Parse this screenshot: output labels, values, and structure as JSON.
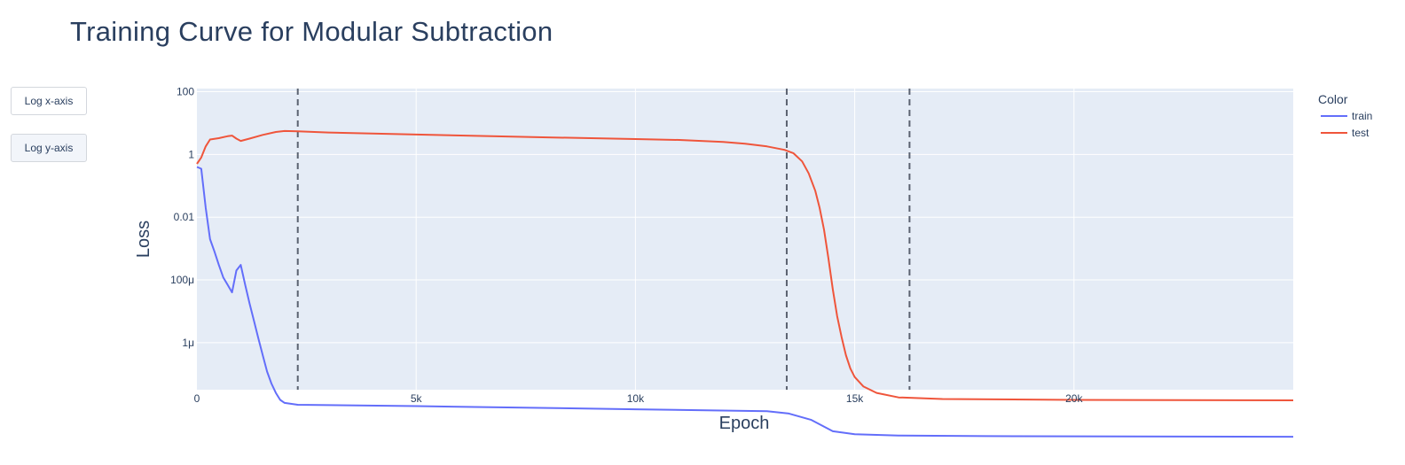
{
  "chart_data": {
    "type": "line",
    "title": "Training Curve for Modular Subtraction",
    "xlabel": "Epoch",
    "ylabel": "Loss",
    "xlim": [
      0,
      25000
    ],
    "ylog": true,
    "ylim_log10": [
      -7.5,
      2.1
    ],
    "x_ticks": [
      {
        "value": 0,
        "label": "0"
      },
      {
        "value": 5000,
        "label": "5k"
      },
      {
        "value": 10000,
        "label": "10k"
      },
      {
        "value": 15000,
        "label": "15k"
      },
      {
        "value": 20000,
        "label": "20k"
      }
    ],
    "y_ticks": [
      {
        "value": 100,
        "label": "100"
      },
      {
        "value": 1,
        "label": "1"
      },
      {
        "value": 0.01,
        "label": "0.01"
      },
      {
        "value": 0.0001,
        "label": "100μ"
      },
      {
        "value": 1e-06,
        "label": "1μ"
      }
    ],
    "vlines": [
      2300,
      13450,
      16250
    ],
    "grid": true,
    "legend": {
      "title": "Color",
      "placement": "right"
    },
    "series": [
      {
        "name": "train",
        "color": "#636efa",
        "points": [
          [
            0,
            0.4
          ],
          [
            100,
            0.35
          ],
          [
            200,
            0.02
          ],
          [
            300,
            0.002
          ],
          [
            400,
            0.0008
          ],
          [
            500,
            0.0003
          ],
          [
            600,
            0.00012
          ],
          [
            700,
            7e-05
          ],
          [
            800,
            4e-05
          ],
          [
            900,
            0.0002
          ],
          [
            1000,
            0.0003
          ],
          [
            1100,
            7e-05
          ],
          [
            1200,
            1.8e-05
          ],
          [
            1300,
            5e-06
          ],
          [
            1400,
            1.4e-06
          ],
          [
            1500,
            4e-07
          ],
          [
            1600,
            1.2e-07
          ],
          [
            1700,
            5e-08
          ],
          [
            1800,
            2.5e-08
          ],
          [
            1900,
            1.5e-08
          ],
          [
            2000,
            1.2e-08
          ],
          [
            2300,
            1.05e-08
          ],
          [
            5000,
            9.5e-09
          ],
          [
            10000,
            7.5e-09
          ],
          [
            13000,
            6.5e-09
          ],
          [
            13500,
            5.5e-09
          ],
          [
            14000,
            3.5e-09
          ],
          [
            14500,
            1.5e-09
          ],
          [
            15000,
            1.2e-09
          ],
          [
            16000,
            1.1e-09
          ],
          [
            18000,
            1.05e-09
          ],
          [
            25000,
            1e-09
          ]
        ]
      },
      {
        "name": "test",
        "color": "#ef553b",
        "points": [
          [
            0,
            0.5
          ],
          [
            100,
            0.8
          ],
          [
            200,
            1.8
          ],
          [
            300,
            3
          ],
          [
            500,
            3.3
          ],
          [
            700,
            3.8
          ],
          [
            800,
            4
          ],
          [
            900,
            3.2
          ],
          [
            1000,
            2.7
          ],
          [
            1200,
            3.2
          ],
          [
            1500,
            4.2
          ],
          [
            1800,
            5.2
          ],
          [
            2000,
            5.6
          ],
          [
            2300,
            5.5
          ],
          [
            3000,
            5
          ],
          [
            5000,
            4.3
          ],
          [
            8000,
            3.5
          ],
          [
            10000,
            3.1
          ],
          [
            11000,
            2.9
          ],
          [
            12000,
            2.5
          ],
          [
            12500,
            2.2
          ],
          [
            13000,
            1.8
          ],
          [
            13400,
            1.4
          ],
          [
            13600,
            1.1
          ],
          [
            13800,
            0.6
          ],
          [
            13950,
            0.25
          ],
          [
            14100,
            0.07
          ],
          [
            14200,
            0.02
          ],
          [
            14300,
            0.004
          ],
          [
            14400,
            0.0005
          ],
          [
            14500,
            5e-05
          ],
          [
            14600,
            7e-06
          ],
          [
            14700,
            1.5e-06
          ],
          [
            14800,
            4e-07
          ],
          [
            14900,
            1.5e-07
          ],
          [
            15000,
            8e-08
          ],
          [
            15200,
            4e-08
          ],
          [
            15500,
            2.5e-08
          ],
          [
            16000,
            1.8e-08
          ],
          [
            17000,
            1.6e-08
          ],
          [
            20000,
            1.5e-08
          ],
          [
            25000,
            1.45e-08
          ]
        ]
      }
    ]
  },
  "buttons": {
    "log_x": "Log x-axis",
    "log_y": "Log y-axis"
  }
}
